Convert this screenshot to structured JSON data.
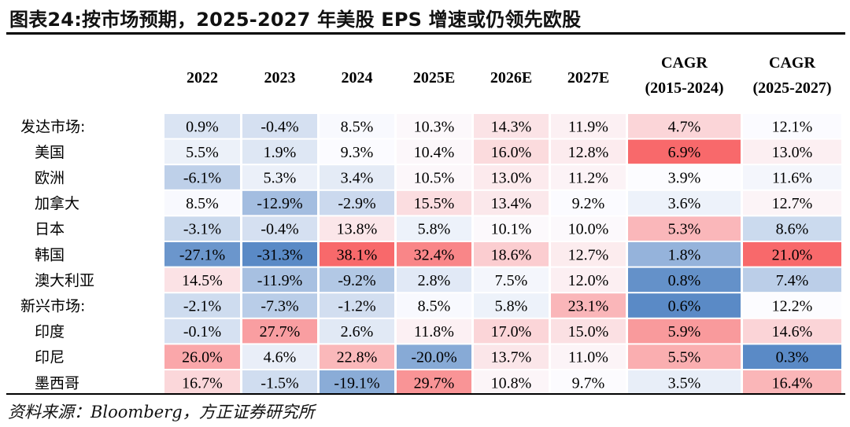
{
  "title": "图表24:按市场预期，2025-2027 年美股 EPS 增速或仍领先欧股",
  "source": "资料来源：Bloomberg，方正证券研究所",
  "chart_data": {
    "type": "table",
    "columns": [
      {
        "line1": "2022",
        "line2": ""
      },
      {
        "line1": "2023",
        "line2": ""
      },
      {
        "line1": "2024",
        "line2": ""
      },
      {
        "line1": "2025E",
        "line2": ""
      },
      {
        "line1": "2026E",
        "line2": ""
      },
      {
        "line1": "2027E",
        "line2": ""
      },
      {
        "line1": "CAGR",
        "line2": "(2015-2024)"
      },
      {
        "line1": "CAGR",
        "line2": "(2025-2027)"
      }
    ],
    "rows": [
      {
        "label": "发达市场:",
        "indent": false,
        "values": [
          0.9,
          -0.4,
          8.5,
          10.3,
          14.3,
          11.9,
          4.7,
          12.1
        ],
        "labels": [
          "0.9%",
          "-0.4%",
          "8.5%",
          "10.3%",
          "14.3%",
          "11.9%",
          "4.7%",
          "12.1%"
        ]
      },
      {
        "label": "美国",
        "indent": true,
        "values": [
          5.5,
          1.9,
          9.3,
          10.4,
          16.0,
          12.8,
          6.9,
          13.0
        ],
        "labels": [
          "5.5%",
          "1.9%",
          "9.3%",
          "10.4%",
          "16.0%",
          "12.8%",
          "6.9%",
          "13.0%"
        ]
      },
      {
        "label": "欧洲",
        "indent": true,
        "values": [
          -6.1,
          5.3,
          3.4,
          10.5,
          13.0,
          11.2,
          3.9,
          11.6
        ],
        "labels": [
          "-6.1%",
          "5.3%",
          "3.4%",
          "10.5%",
          "13.0%",
          "11.2%",
          "3.9%",
          "11.6%"
        ]
      },
      {
        "label": "加拿大",
        "indent": true,
        "values": [
          8.5,
          -12.9,
          -2.9,
          15.5,
          13.4,
          9.2,
          3.6,
          12.7
        ],
        "labels": [
          "8.5%",
          "-12.9%",
          "-2.9%",
          "15.5%",
          "13.4%",
          "9.2%",
          "3.6%",
          "12.7%"
        ]
      },
      {
        "label": "日本",
        "indent": true,
        "values": [
          -3.1,
          -0.4,
          13.8,
          5.8,
          10.1,
          10.0,
          5.3,
          8.6
        ],
        "labels": [
          "-3.1%",
          "-0.4%",
          "13.8%",
          "5.8%",
          "10.1%",
          "10.0%",
          "5.3%",
          "8.6%"
        ]
      },
      {
        "label": "韩国",
        "indent": true,
        "values": [
          -27.1,
          -31.3,
          38.1,
          32.4,
          18.6,
          12.7,
          1.8,
          21.0
        ],
        "labels": [
          "-27.1%",
          "-31.3%",
          "38.1%",
          "32.4%",
          "18.6%",
          "12.7%",
          "1.8%",
          "21.0%"
        ]
      },
      {
        "label": "澳大利亚",
        "indent": true,
        "values": [
          14.5,
          -11.9,
          -9.2,
          2.8,
          7.5,
          12.0,
          0.8,
          7.4
        ],
        "labels": [
          "14.5%",
          "-11.9%",
          "-9.2%",
          "2.8%",
          "7.5%",
          "12.0%",
          "0.8%",
          "7.4%"
        ]
      },
      {
        "label": "新兴市场:",
        "indent": false,
        "values": [
          -2.1,
          -7.3,
          -1.2,
          8.5,
          5.8,
          23.1,
          0.6,
          12.2
        ],
        "labels": [
          "-2.1%",
          "-7.3%",
          "-1.2%",
          "8.5%",
          "5.8%",
          "23.1%",
          "0.6%",
          "12.2%"
        ]
      },
      {
        "label": "印度",
        "indent": true,
        "values": [
          -0.1,
          27.7,
          2.6,
          11.8,
          17.0,
          15.0,
          5.9,
          14.6
        ],
        "labels": [
          "-0.1%",
          "27.7%",
          "2.6%",
          "11.8%",
          "17.0%",
          "15.0%",
          "5.9%",
          "14.6%"
        ]
      },
      {
        "label": "印尼",
        "indent": true,
        "values": [
          26.0,
          4.6,
          22.8,
          -20.0,
          13.7,
          11.0,
          5.5,
          0.3
        ],
        "labels": [
          "26.0%",
          "4.6%",
          "22.8%",
          "-20.0%",
          "13.7%",
          "11.0%",
          "5.5%",
          "0.3%"
        ]
      },
      {
        "label": "墨西哥",
        "indent": true,
        "values": [
          16.7,
          -1.5,
          -19.1,
          29.7,
          10.8,
          9.7,
          3.5,
          16.4
        ],
        "labels": [
          "16.7%",
          "-1.5%",
          "-19.1%",
          "29.7%",
          "10.8%",
          "9.7%",
          "3.5%",
          "16.4%"
        ]
      }
    ],
    "colors": {
      "high": "#f8696b",
      "mid": "#fcfcff",
      "low": "#5a8ac6"
    },
    "heatmap_groups": [
      [
        0,
        6
      ],
      [
        6,
        7
      ],
      [
        7,
        8
      ]
    ]
  }
}
